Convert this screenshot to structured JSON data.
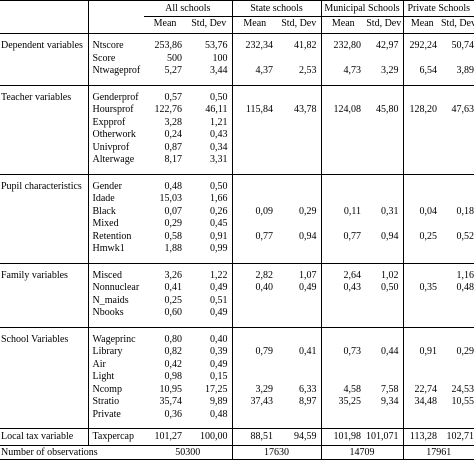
{
  "header": {
    "groups": [
      "All schools",
      "State schools",
      "Municipal Schools",
      "Private Schools"
    ],
    "mean_label": "Mean",
    "sd_label": "Std, Dev"
  },
  "sections": [
    {
      "title": "Dependent variables",
      "rows": [
        {
          "var": "Ntscore",
          "vals": [
            "253,86",
            "53,76",
            "232,34",
            "41,82",
            "232,80",
            "42,97",
            "292,24",
            "50,74"
          ]
        },
        {
          "var": "Score",
          "vals": [
            "500",
            "100",
            "",
            "",
            "",
            "",
            "",
            ""
          ]
        },
        {
          "var": "Ntwageprof",
          "vals": [
            "5,27",
            "3,44",
            "4,37",
            "2,53",
            "4,73",
            "3,29",
            "6,54",
            "3,89"
          ]
        }
      ]
    },
    {
      "title": "Teacher variables",
      "rows": [
        {
          "var": "Genderprof",
          "vals": [
            "0,57",
            "0,50",
            "",
            "",
            "",
            "",
            "",
            ""
          ]
        },
        {
          "var": "Hoursprof",
          "vals": [
            "122,76",
            "46,11",
            "115,84",
            "43,78",
            "124,08",
            "45,80",
            "128,20",
            "47,63"
          ]
        },
        {
          "var": "Expprof",
          "vals": [
            "3,28",
            "1,21",
            "",
            "",
            "",
            "",
            "",
            ""
          ]
        },
        {
          "var": "Otherwork",
          "vals": [
            "0,24",
            "0,43",
            "",
            "",
            "",
            "",
            "",
            ""
          ]
        },
        {
          "var": "Univprof",
          "vals": [
            "0,87",
            "0,34",
            "",
            "",
            "",
            "",
            "",
            ""
          ]
        },
        {
          "var": "Alterwage",
          "vals": [
            "8,17",
            "3,31",
            "",
            "",
            "",
            "",
            "",
            ""
          ]
        }
      ]
    },
    {
      "title": "Pupil characteristics",
      "rows": [
        {
          "var": "Gender",
          "vals": [
            "0,48",
            "0,50",
            "",
            "",
            "",
            "",
            "",
            ""
          ]
        },
        {
          "var": "Idade",
          "vals": [
            "15,03",
            "1,66",
            "",
            "",
            "",
            "",
            "",
            ""
          ]
        },
        {
          "var": "Black",
          "vals": [
            "0,07",
            "0,26",
            "0,09",
            "0,29",
            "0,11",
            "0,31",
            "0,04",
            "0,18"
          ]
        },
        {
          "var": "Mixed",
          "vals": [
            "0,29",
            "0,45",
            "",
            "",
            "",
            "",
            "",
            ""
          ]
        },
        {
          "var": "Retention",
          "vals": [
            "0,58",
            "0,91",
            "0,77",
            "0,94",
            "0,77",
            "0,94",
            "0,25",
            "0,52"
          ]
        },
        {
          "var": "Hmwk1",
          "vals": [
            "1,88",
            "0,99",
            "",
            "",
            "",
            "",
            "",
            ""
          ]
        }
      ]
    },
    {
      "title": "Family variables",
      "rows": [
        {
          "var": "Misced",
          "vals": [
            "3,26",
            "1,22",
            "2,82",
            "1,07",
            "2,64",
            "1,02",
            "",
            "1,16"
          ]
        },
        {
          "var": "Nonnuclear",
          "vals": [
            "0,41",
            "0,49",
            "0,40",
            "0,49",
            "0,43",
            "0,50",
            "0,35",
            "0,48"
          ]
        },
        {
          "var": "N_maids",
          "vals": [
            "0,25",
            "0,51",
            "",
            "",
            "",
            "",
            "",
            ""
          ]
        },
        {
          "var": "Nbooks",
          "vals": [
            "0,60",
            "0,49",
            "",
            "",
            "",
            "",
            "",
            ""
          ]
        }
      ]
    },
    {
      "title": "School Variables",
      "rows": [
        {
          "var": "Wageprinc",
          "vals": [
            "0,80",
            "0,40",
            "",
            "",
            "",
            "",
            "",
            ""
          ]
        },
        {
          "var": "Library",
          "vals": [
            "0,82",
            "0,39",
            "0,79",
            "0,41",
            "0,73",
            "0,44",
            "0,91",
            "0,29"
          ]
        },
        {
          "var": "Air",
          "vals": [
            "0,42",
            "0,49",
            "",
            "",
            "",
            "",
            "",
            ""
          ]
        },
        {
          "var": "Light",
          "vals": [
            "0,98",
            "0,15",
            "",
            "",
            "",
            "",
            "",
            ""
          ]
        },
        {
          "var": "Ncomp",
          "vals": [
            "10,95",
            "17,25",
            "3,29",
            "6,33",
            "4,58",
            "7,58",
            "22,74",
            "24,53"
          ]
        },
        {
          "var": "Stratio",
          "vals": [
            "35,74",
            "9,89",
            "37,43",
            "8,97",
            "35,25",
            "9,34",
            "34,48",
            "10,55"
          ]
        },
        {
          "var": "Private",
          "vals": [
            "0,36",
            "0,48",
            "",
            "",
            "",
            "",
            "",
            ""
          ]
        }
      ]
    },
    {
      "title": "Local tax variable",
      "rows": [
        {
          "var": "Taxpercap",
          "vals": [
            "101,27",
            "100,00",
            "88,51",
            "94,59",
            "101,98",
            "101,071",
            "113,28",
            "102,71"
          ]
        }
      ]
    }
  ],
  "observations": {
    "label": "Number of observations",
    "values": [
      "50300",
      "17630",
      "14709",
      "17961"
    ]
  }
}
